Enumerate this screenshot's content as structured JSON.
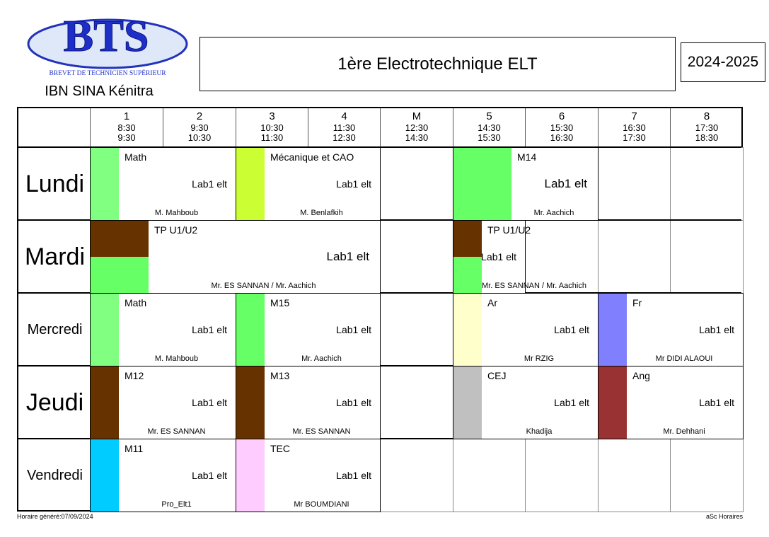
{
  "header": {
    "logo_text": "BTS",
    "logo_subtext": "BREVET DE TECHNICIEN SUPÉRIEUR",
    "school": "IBN SINA Kénitra",
    "title": "1ère  Electrotechnique ELT",
    "year": "2024-2025"
  },
  "periods": [
    {
      "label": "1",
      "start": "8:30",
      "end": "9:30"
    },
    {
      "label": "2",
      "start": "9:30",
      "end": "10:30"
    },
    {
      "label": "3",
      "start": "10:30",
      "end": "11:30"
    },
    {
      "label": "4",
      "start": "11:30",
      "end": "12:30"
    },
    {
      "label": "M",
      "start": "12:30",
      "end": "14:30"
    },
    {
      "label": "5",
      "start": "14:30",
      "end": "15:30"
    },
    {
      "label": "6",
      "start": "15:30",
      "end": "16:30"
    },
    {
      "label": "7",
      "start": "16:30",
      "end": "17:30"
    },
    {
      "label": "8",
      "start": "17:30",
      "end": "18:30"
    }
  ],
  "days": [
    "Lundi",
    "Mardi",
    "Mercredi",
    "Jeudi",
    "Vendredi"
  ],
  "lessons": [
    {
      "day": 0,
      "period_index": 0,
      "span": 2,
      "subject": "Math",
      "room": "Lab1 elt",
      "teacher": "M. Mahboub",
      "colors": [
        "#80ff80"
      ]
    },
    {
      "day": 0,
      "period_index": 2,
      "span": 2,
      "subject": "Mécanique et CAO",
      "room": "Lab1 elt",
      "teacher": "M. Benlafkih",
      "colors": [
        "#ccff33"
      ]
    },
    {
      "day": 0,
      "period_index": 5,
      "span": 2,
      "subject": "M14",
      "room": "Lab1 elt",
      "teacher": "Mr. Aachich",
      "colors": [
        "#66ff66"
      ]
    },
    {
      "day": 1,
      "period_index": 0,
      "span": 4,
      "subject": "TP U1/U2",
      "room": "Lab1 elt",
      "teacher": "Mr. ES SANNAN / Mr. Aachich",
      "colors": [
        "#663300",
        "#66ff66"
      ]
    },
    {
      "day": 1,
      "period_index": 5,
      "span": 1,
      "subject": "TP U1/U2",
      "room": "Lab1 elt",
      "teacher": "Mr. ES SANNAN / Mr. Aachich",
      "colors": [
        "#663300",
        "#66ff66"
      ]
    },
    {
      "day": 2,
      "period_index": 0,
      "span": 2,
      "subject": "Math",
      "room": "Lab1 elt",
      "teacher": "M. Mahboub",
      "colors": [
        "#80ff80"
      ]
    },
    {
      "day": 2,
      "period_index": 2,
      "span": 2,
      "subject": "M15",
      "room": "Lab1 elt",
      "teacher": "Mr. Aachich",
      "colors": [
        "#66ff66"
      ]
    },
    {
      "day": 2,
      "period_index": 5,
      "span": 2,
      "subject": "Ar",
      "room": "Lab1 elt",
      "teacher": "Mr RZIG",
      "colors": [
        "#ffffcc"
      ]
    },
    {
      "day": 2,
      "period_index": 7,
      "span": 2,
      "subject": "Fr",
      "room": "Lab1 elt",
      "teacher": "Mr DIDI ALAOUI",
      "colors": [
        "#8080ff"
      ]
    },
    {
      "day": 3,
      "period_index": 0,
      "span": 2,
      "subject": "M12",
      "room": "Lab1 elt",
      "teacher": "Mr. ES SANNAN",
      "colors": [
        "#663300"
      ]
    },
    {
      "day": 3,
      "period_index": 2,
      "span": 2,
      "subject": "M13",
      "room": "Lab1 elt",
      "teacher": "Mr. ES SANNAN",
      "colors": [
        "#663300"
      ]
    },
    {
      "day": 3,
      "period_index": 5,
      "span": 2,
      "subject": "CEJ",
      "room": "Lab1 elt",
      "teacher": "Khadija",
      "colors": [
        "#c0c0c0"
      ]
    },
    {
      "day": 3,
      "period_index": 7,
      "span": 2,
      "subject": "Ang",
      "room": "Lab1 elt",
      "teacher": "Mr. Dehhani",
      "colors": [
        "#993333"
      ]
    },
    {
      "day": 4,
      "period_index": 0,
      "span": 2,
      "subject": "M11",
      "room": "Lab1 elt",
      "teacher": "Pro_Elt1",
      "colors": [
        "#00ccff"
      ]
    },
    {
      "day": 4,
      "period_index": 2,
      "span": 2,
      "subject": "TEC",
      "room": "Lab1 elt",
      "teacher": "Mr BOUMDIANI",
      "colors": [
        "#ffccff"
      ]
    }
  ],
  "footer": {
    "generated": "Horaire généré:07/09/2024",
    "software": "aSc Horaires"
  }
}
